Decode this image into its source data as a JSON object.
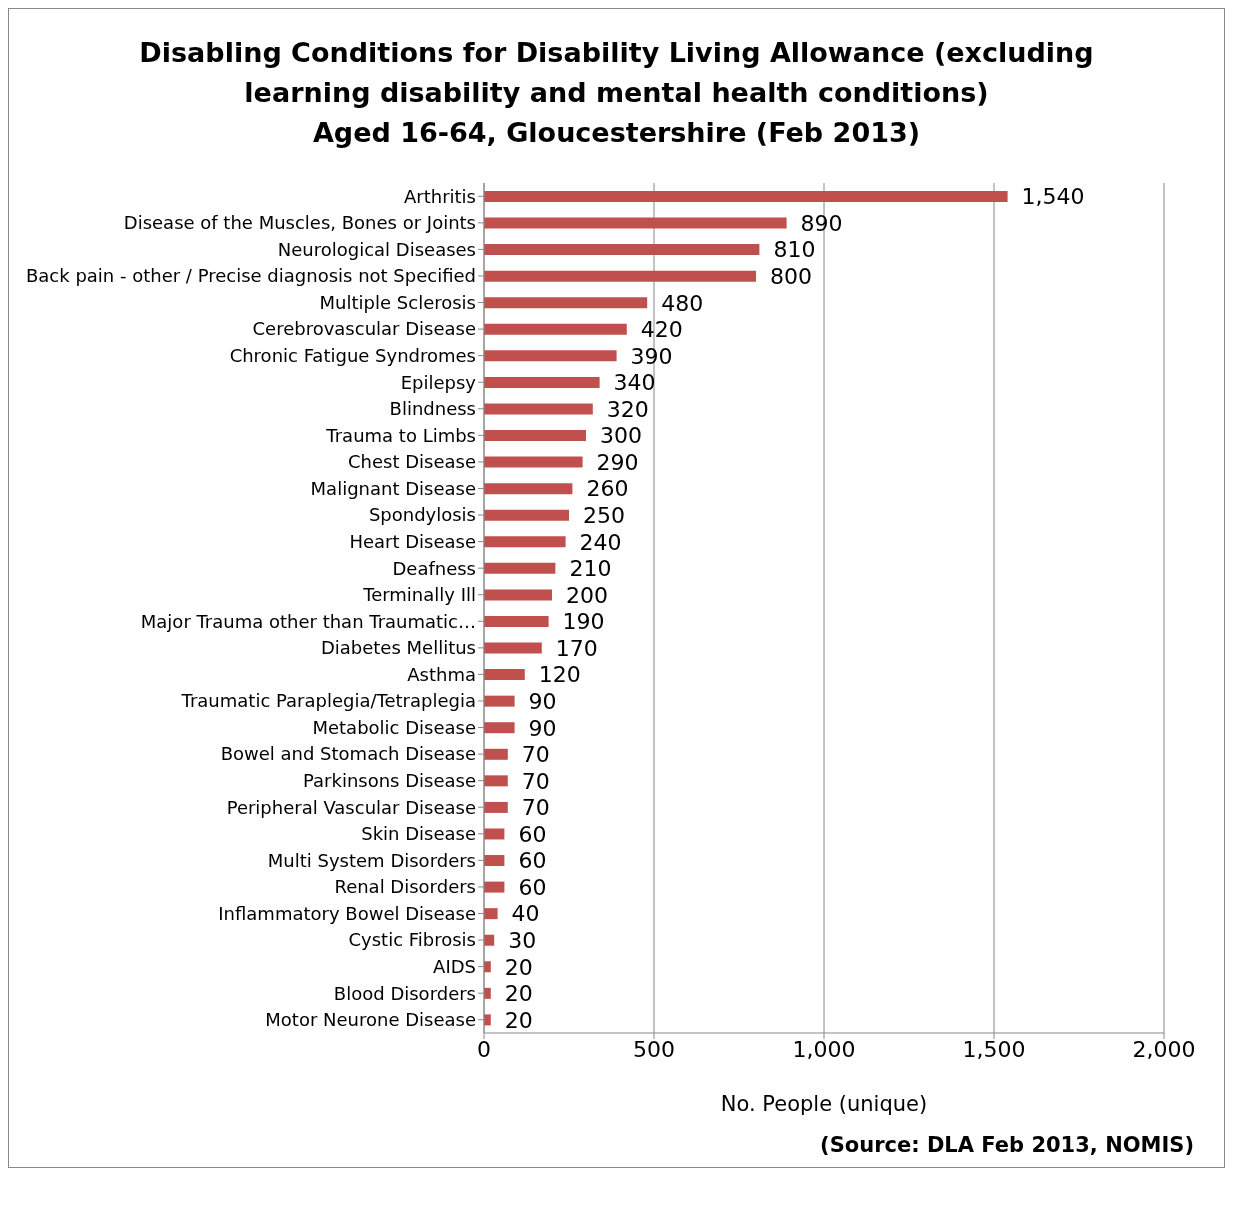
{
  "chart_data": {
    "type": "bar",
    "orientation": "horizontal",
    "title": "Disabling Conditions for Disability Living Allowance (excluding learning disability and mental health conditions)",
    "subtitle": "Aged 16-64, Gloucestershire (Feb 2013)",
    "xlabel": "No. People (unique)",
    "categories": [
      "Arthritis",
      "Disease of the Muscles, Bones or Joints",
      "Neurological Diseases",
      "Back pain - other / Precise diagnosis not Specified",
      "Multiple Sclerosis",
      "Cerebrovascular Disease",
      "Chronic Fatigue Syndromes",
      "Epilepsy",
      "Blindness",
      "Trauma to Limbs",
      "Chest Disease",
      "Malignant Disease",
      "Spondylosis",
      "Heart Disease",
      "Deafness",
      "Terminally Ill",
      "Major Trauma other than Traumatic…",
      "Diabetes Mellitus",
      "Asthma",
      "Traumatic Paraplegia/Tetraplegia",
      "Metabolic Disease",
      "Bowel and Stomach Disease",
      "Parkinsons Disease",
      "Peripheral Vascular Disease",
      "Skin Disease",
      "Multi System Disorders",
      "Renal Disorders",
      "Inflammatory Bowel Disease",
      "Cystic Fibrosis",
      "AIDS",
      "Blood Disorders",
      "Motor Neurone Disease"
    ],
    "values": [
      1540,
      890,
      810,
      800,
      480,
      420,
      390,
      340,
      320,
      300,
      290,
      260,
      250,
      240,
      210,
      200,
      190,
      170,
      120,
      90,
      90,
      70,
      70,
      70,
      60,
      60,
      60,
      40,
      30,
      20,
      20,
      20
    ],
    "value_labels": [
      "1,540",
      "890",
      "810",
      "800",
      "480",
      "420",
      "390",
      "340",
      "320",
      "300",
      "290",
      "260",
      "250",
      "240",
      "210",
      "200",
      "190",
      "170",
      "120",
      "90",
      "90",
      "70",
      "70",
      "70",
      "60",
      "60",
      "60",
      "40",
      "30",
      "20",
      "20",
      "20"
    ],
    "color": "#c0504d",
    "xlim": [
      0,
      2000
    ],
    "xticks": [
      0,
      500,
      {
        "value": 1000,
        "label": "1,000"
      },
      {
        "value": 1500,
        "label": "1,500"
      },
      {
        "value": 2000,
        "label": "2,000"
      }
    ],
    "grid": "x",
    "annotations": [
      "(Source: DLA Feb 2013, NOMIS)"
    ]
  }
}
